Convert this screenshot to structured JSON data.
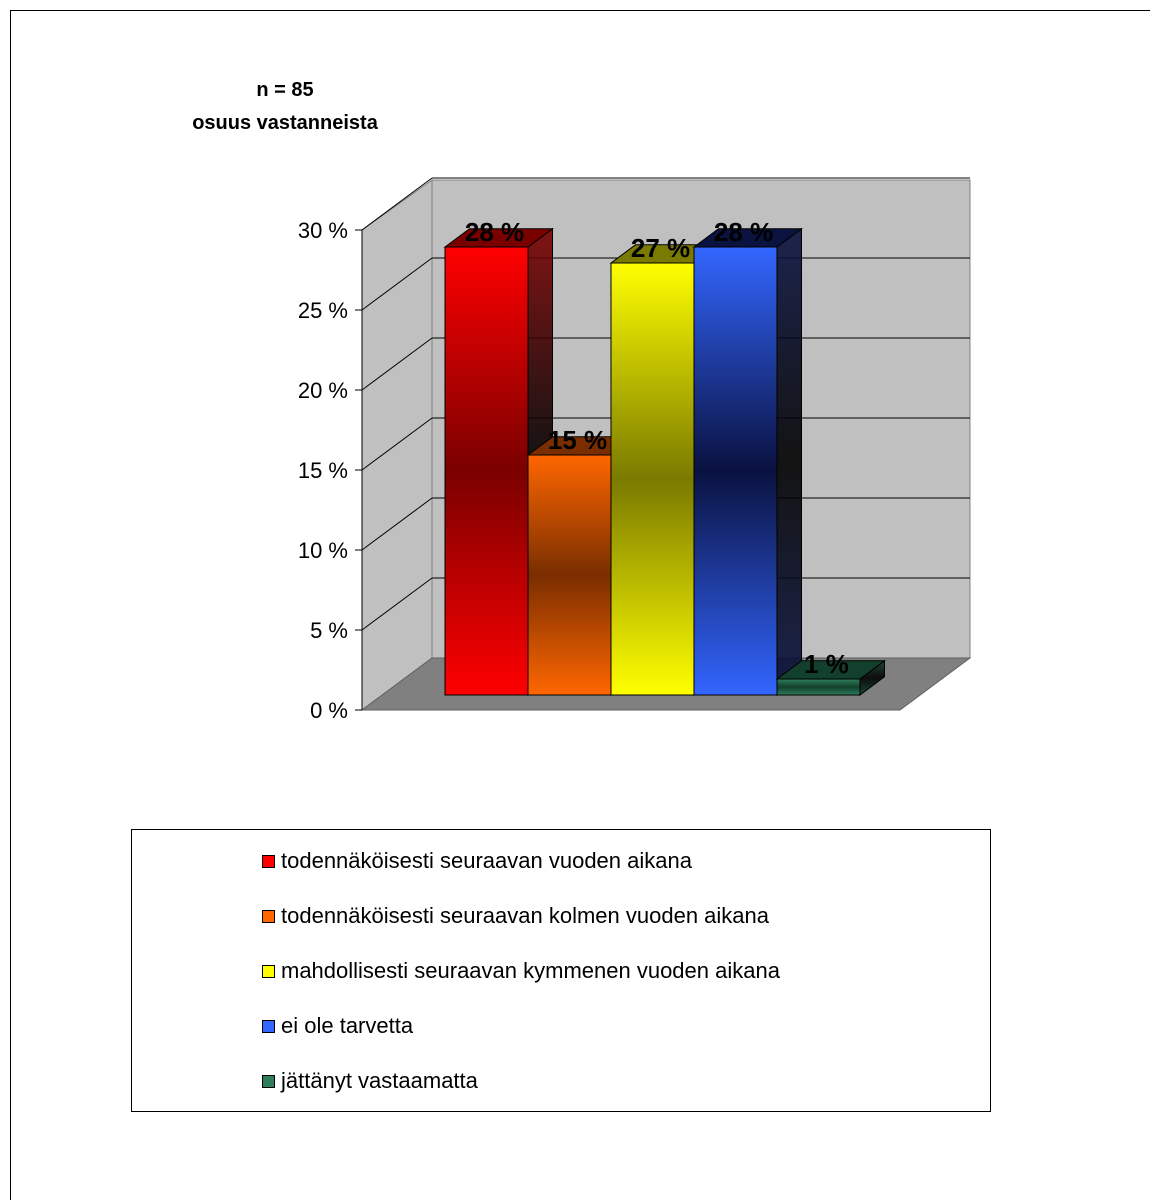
{
  "chart_data": {
    "type": "bar",
    "title": "n = 85",
    "subtitle": "osuus vastanneista",
    "xlabel": "",
    "ylabel": "",
    "ylim": [
      0,
      30
    ],
    "yticks": [
      0,
      5,
      10,
      15,
      20,
      25,
      30
    ],
    "ytick_labels": [
      "0 %",
      "5 %",
      "10 %",
      "15 %",
      "20 %",
      "25 %",
      "30 %"
    ],
    "grid": true,
    "legend_position": "bottom",
    "categories": [
      "todennäköisesti seuraavan vuoden aikana",
      "todennäköisesti seuraavan kolmen vuoden aikana",
      "mahdollisesti seuraavan kymmenen vuoden aikana",
      "ei ole tarvetta",
      "jättänyt vastaamatta"
    ],
    "values": [
      28,
      15,
      27,
      28,
      1
    ],
    "data_labels": [
      "28 %",
      "15 %",
      "27 %",
      "28 %",
      "1 %"
    ],
    "colors": [
      "#ff0000",
      "#ff6600",
      "#ffff00",
      "#3366ff",
      "#2e7d5b"
    ],
    "dark_colors": [
      "#7a0000",
      "#7a2e00",
      "#7a7a00",
      "#0a1240",
      "#12402c"
    ]
  }
}
